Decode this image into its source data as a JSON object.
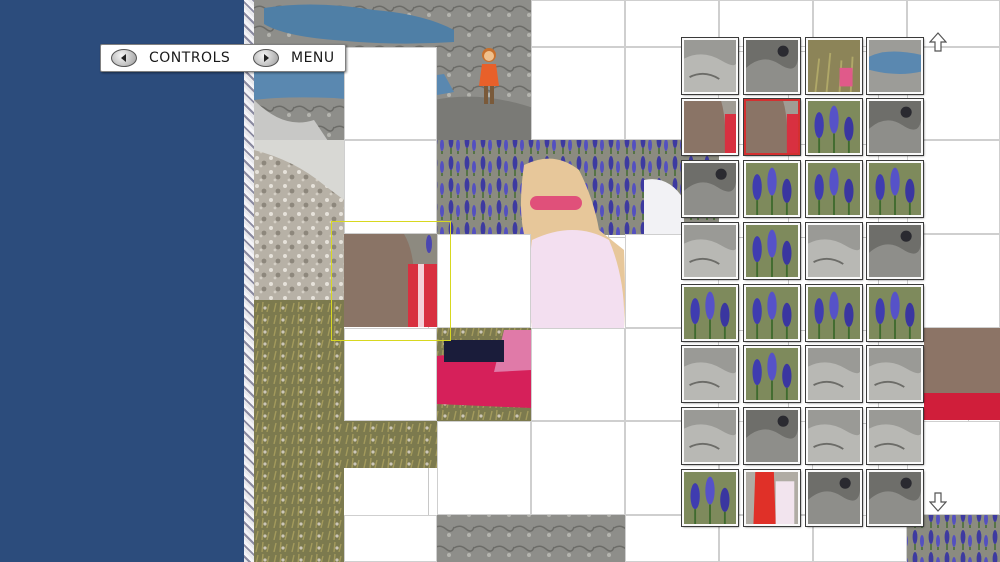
{
  "toolbar": {
    "controls_label": "CONTROLS",
    "menu_label": "MENU",
    "controls_icon": "left-arrow-circle-icon",
    "menu_icon": "right-arrow-circle-icon"
  },
  "tray": {
    "scroll_up_icon": "up-arrow-icon",
    "scroll_down_icon": "down-arrow-icon",
    "pieces": [
      {
        "theme": "rock",
        "active": false
      },
      {
        "theme": "rock-dark",
        "active": false
      },
      {
        "theme": "grass",
        "active": false
      },
      {
        "theme": "water",
        "active": false
      },
      {
        "theme": "person",
        "active": false
      },
      {
        "theme": "person",
        "active": true
      },
      {
        "theme": "flowers",
        "active": false
      },
      {
        "theme": "rock-dark",
        "active": false
      },
      {
        "theme": "rock-dark",
        "active": false
      },
      {
        "theme": "flowers",
        "active": false
      },
      {
        "theme": "flowers",
        "active": false
      },
      {
        "theme": "flowers",
        "active": false
      },
      {
        "theme": "rock",
        "active": false
      },
      {
        "theme": "flowers",
        "active": false
      },
      {
        "theme": "rock",
        "active": false
      },
      {
        "theme": "rock-dark",
        "active": false
      },
      {
        "theme": "flowers",
        "active": false
      },
      {
        "theme": "flowers",
        "active": false
      },
      {
        "theme": "flowers",
        "active": false
      },
      {
        "theme": "flowers",
        "active": false
      },
      {
        "theme": "rock",
        "active": false
      },
      {
        "theme": "flowers",
        "active": false
      },
      {
        "theme": "rock",
        "active": false
      },
      {
        "theme": "rock",
        "active": false
      },
      {
        "theme": "rock",
        "active": false
      },
      {
        "theme": "rock-dark",
        "active": false
      },
      {
        "theme": "rock",
        "active": false
      },
      {
        "theme": "rock",
        "active": false
      },
      {
        "theme": "flowers",
        "active": false
      },
      {
        "theme": "red",
        "active": false
      },
      {
        "theme": "rock-dark",
        "active": false
      },
      {
        "theme": "rock-dark",
        "active": false
      }
    ]
  },
  "colors": {
    "sidebar": "#2c4c7c",
    "selection_outline": "#d8d820",
    "active_piece_border": "#d43030"
  }
}
